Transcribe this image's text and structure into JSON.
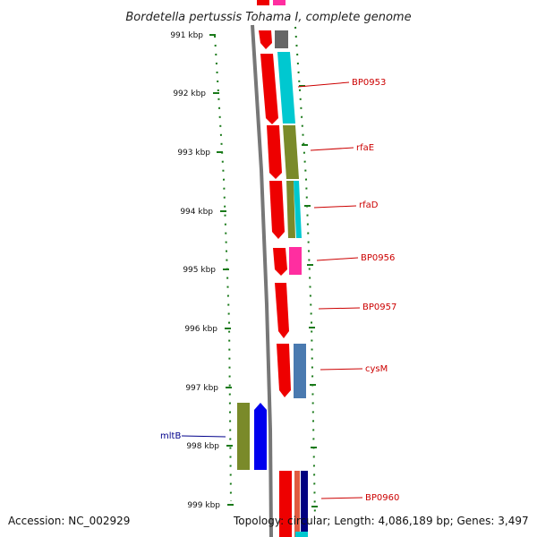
{
  "title": "Bordetella pertussis Tohama I, complete genome",
  "ticks": [
    "991 kbp",
    "992 kbp",
    "993 kbp",
    "994 kbp",
    "995 kbp",
    "996 kbp",
    "997 kbp",
    "998 kbp",
    "999 kbp"
  ],
  "gene_labels": [
    "BP0953",
    "rfaE",
    "rfaD",
    "BP0956",
    "BP0957",
    "cysM",
    "mltB",
    "BP0960"
  ],
  "footer": {
    "accession": "Accession: NC_002929",
    "topology": "Topology: circular; Length: 4,086,189 bp; Genes: 3,497"
  },
  "colors": {
    "red": "#ee0000",
    "cyan": "#00c8d0",
    "olive": "#7a8a2a",
    "magenta": "#ff2ea0",
    "steelblue": "#4a7ab0",
    "blue": "#0000ee",
    "navy": "#000080",
    "gray": "#666666",
    "tickgreen": "#1a7a1a",
    "label_red": "#cc0000",
    "label_blue": "#00008b"
  }
}
